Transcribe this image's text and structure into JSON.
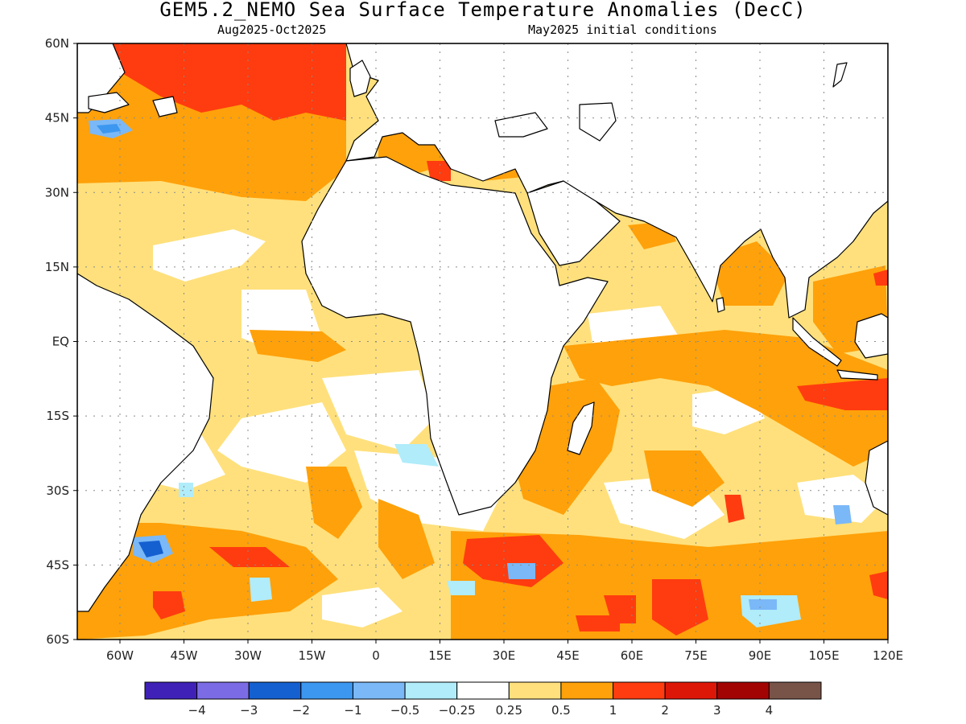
{
  "title": "GEM5.2_NEMO Sea Surface Temperature Anomalies (DecC)",
  "subtitle_left": "Aug2025-Oct2025",
  "subtitle_right": "May2025 initial conditions",
  "map": {
    "lon_range": [
      -70,
      120
    ],
    "lat_range": [
      -60,
      60
    ],
    "lat_ticks": [
      "60N",
      "45N",
      "30N",
      "15N",
      "EQ",
      "15S",
      "30S",
      "45S",
      "60S"
    ],
    "lon_ticks": [
      "60W",
      "45W",
      "30W",
      "15W",
      "0",
      "15E",
      "30E",
      "45E",
      "60E",
      "75E",
      "90E",
      "105E",
      "120E"
    ],
    "grid": true,
    "land_color": "#ffffff",
    "coastline_color": "#000000"
  },
  "colorbar": {
    "colors": [
      "#3f21b8",
      "#7b6ce6",
      "#1560d0",
      "#3c97f0",
      "#7ab8f7",
      "#b0ecfa",
      "#ffffff",
      "#ffe07c",
      "#ffa10a",
      "#ff3c0f",
      "#dd1707",
      "#a20404",
      "#775348"
    ],
    "labels": [
      "-4",
      "-3",
      "-2",
      "-1",
      "-0.5",
      "-0.25",
      "0.25",
      "0.5",
      "1",
      "2",
      "3",
      "4"
    ]
  }
}
